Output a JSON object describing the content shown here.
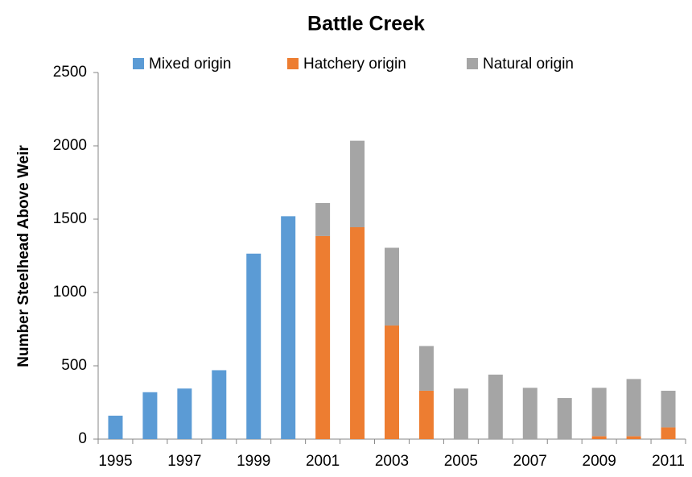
{
  "chart_data": {
    "type": "stacked_bar",
    "title": "Battle Creek",
    "y_label": "Number Steelhead  Above Weir",
    "categories": [
      "1995",
      null,
      "1997",
      null,
      "1999",
      null,
      "2001",
      null,
      "2003",
      null,
      "2005",
      null,
      "2007",
      null,
      "2009",
      null,
      "2011"
    ],
    "series": [
      {
        "name": "Mixed origin",
        "color": "#5b9bd5",
        "values": [
          160,
          320,
          345,
          470,
          1265,
          1520,
          null,
          null,
          null,
          null,
          null,
          null,
          null,
          null,
          null,
          null,
          null
        ]
      },
      {
        "name": "Hatchery origin",
        "color": "#ed7d31",
        "values": [
          null,
          null,
          null,
          null,
          null,
          null,
          1385,
          1445,
          775,
          330,
          null,
          null,
          null,
          null,
          20,
          20,
          80
        ]
      },
      {
        "name": "Natural origin",
        "color": "#a5a5a5",
        "values": [
          null,
          null,
          null,
          null,
          null,
          null,
          225,
          590,
          530,
          305,
          345,
          440,
          350,
          280,
          330,
          390,
          250
        ]
      }
    ],
    "ylim": [
      0,
      2500
    ],
    "yticks": [
      0,
      500,
      1000,
      1500,
      2000,
      2500
    ],
    "legend": "top"
  }
}
